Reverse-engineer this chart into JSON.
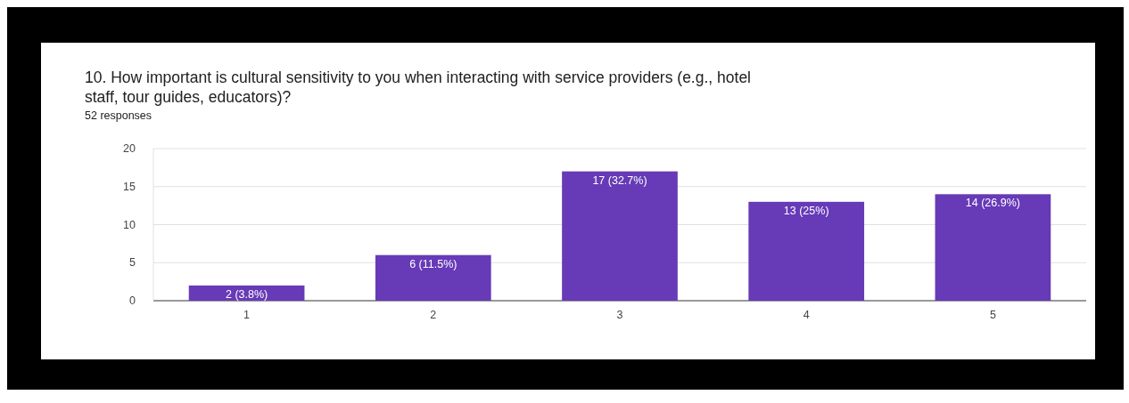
{
  "chart_data": {
    "type": "bar",
    "title": "10. How important is cultural sensitivity to you when interacting with service providers (e.g., hotel staff, tour guides, educators)?",
    "subtitle": "52 responses",
    "categories": [
      "1",
      "2",
      "3",
      "4",
      "5"
    ],
    "values": [
      2,
      6,
      17,
      13,
      14
    ],
    "value_labels": [
      "2 (3.8%)",
      "6 (11.5%)",
      "17 (32.7%)",
      "13 (25%)",
      "14 (26.9%)"
    ],
    "color": "#673ab7",
    "ylim": [
      0,
      20
    ],
    "yticks": [
      0,
      5,
      10,
      15,
      20
    ],
    "grid": "y"
  }
}
